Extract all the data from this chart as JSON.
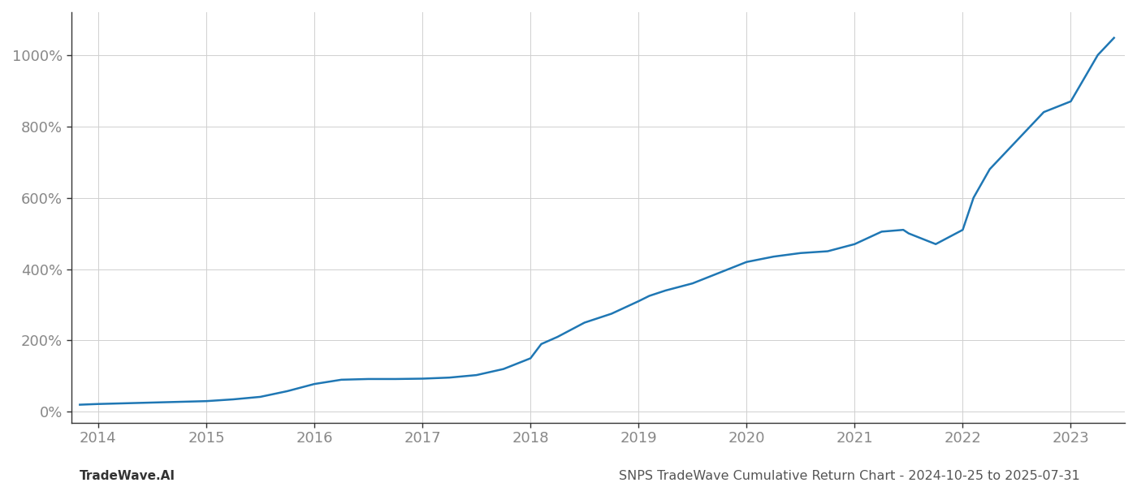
{
  "x_values": [
    2013.83,
    2014.0,
    2014.25,
    2014.5,
    2014.75,
    2015.0,
    2015.25,
    2015.5,
    2015.75,
    2016.0,
    2016.25,
    2016.5,
    2016.75,
    2017.0,
    2017.25,
    2017.5,
    2017.75,
    2018.0,
    2018.1,
    2018.25,
    2018.5,
    2018.75,
    2019.0,
    2019.1,
    2019.25,
    2019.5,
    2019.75,
    2020.0,
    2020.25,
    2020.5,
    2020.75,
    2021.0,
    2021.25,
    2021.45,
    2021.5,
    2021.75,
    2022.0,
    2022.1,
    2022.25,
    2022.5,
    2022.75,
    2023.0,
    2023.25,
    2023.4
  ],
  "y_values": [
    20,
    22,
    24,
    26,
    28,
    30,
    35,
    42,
    58,
    78,
    90,
    92,
    92,
    93,
    96,
    103,
    120,
    150,
    190,
    210,
    250,
    275,
    310,
    325,
    340,
    360,
    390,
    420,
    435,
    445,
    450,
    470,
    505,
    510,
    500,
    470,
    510,
    600,
    680,
    760,
    840,
    870,
    1000,
    1048
  ],
  "line_color": "#1f77b4",
  "line_width": 1.8,
  "title": "SNPS TradeWave Cumulative Return Chart - 2024-10-25 to 2025-07-31",
  "footer_left": "TradeWave.AI",
  "x_ticks": [
    2014,
    2015,
    2016,
    2017,
    2018,
    2019,
    2020,
    2021,
    2022,
    2023
  ],
  "y_ticks": [
    0,
    200,
    400,
    600,
    800,
    1000
  ],
  "xlim": [
    2013.75,
    2023.5
  ],
  "ylim": [
    -30,
    1120
  ],
  "background_color": "#ffffff",
  "grid_color": "#d0d0d0",
  "title_fontsize": 11.5,
  "footer_fontsize": 11,
  "tick_fontsize": 13,
  "tick_color": "#888888"
}
